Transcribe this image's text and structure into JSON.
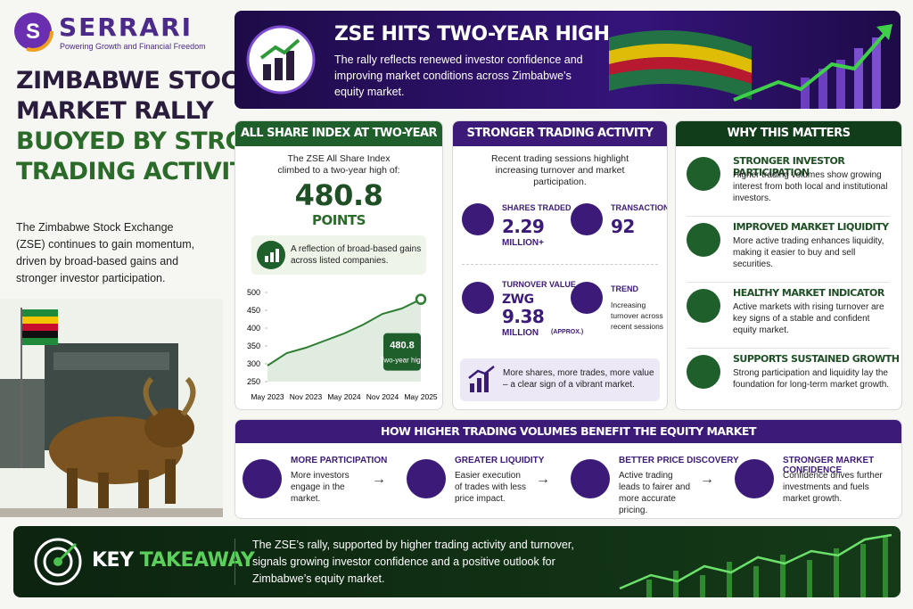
{
  "brand": {
    "name": "SERRARI",
    "tagline": "Powering Growth and Financial Freedom"
  },
  "headline": {
    "line1": "ZIMBABWE STOCK",
    "line2": "MARKET RALLY",
    "line3": "BUOYED BY STRONGER",
    "line4": "TRADING ACTIVITY"
  },
  "intro": "The Zimbabwe Stock Exchange (ZSE) continues to gain momentum, driven by broad-based gains and stronger investor participation.",
  "banner": {
    "title": "ZSE HITS TWO-YEAR HIGH",
    "text": "The rally reflects renewed investor confidence and improving market conditions across Zimbabwe’s equity market."
  },
  "index_panel": {
    "title": "ALL SHARE INDEX AT TWO-YEAR HIGH",
    "text": "The ZSE All Share Index climbed to a two-year high of:",
    "value": "480.8",
    "unit": "POINTS",
    "note": "A reflection of broad-based gains across listed companies.",
    "chart": {
      "type": "line",
      "categories": [
        "May 2023",
        null,
        "Nov 2023",
        null,
        "May 2024",
        null,
        "Nov 2024",
        null,
        "May 2025"
      ],
      "values": [
        295,
        330,
        345,
        365,
        385,
        410,
        440,
        455,
        480.8
      ],
      "color": "#2e7d32",
      "ylim": [
        250,
        500
      ],
      "yticks": [
        250,
        300,
        350,
        400,
        450,
        500
      ],
      "annotation": {
        "value_label": "480.8",
        "text": "Two-year high"
      }
    }
  },
  "trading_panel": {
    "title": "STRONGER TRADING ACTIVITY",
    "text": "Recent trading sessions highlight increasing turnover and market participation.",
    "shares": {
      "label": "SHARES TRADED",
      "value": "2.29",
      "unit": "MILLION+"
    },
    "transactions": {
      "label": "TRANSACTIONS",
      "value": "92"
    },
    "turnover": {
      "label": "TURNOVER VALUE",
      "prefix": "ZWG",
      "value": "9.38",
      "unit": "MILLION",
      "note": "(APPROX.)"
    },
    "trend": {
      "label": "TREND",
      "text": "Increasing turnover across recent sessions"
    },
    "footer": "More shares, more trades, more value – a clear sign of a vibrant market."
  },
  "why_panel": {
    "title": "WHY THIS MATTERS",
    "items": [
      {
        "title": "STRONGER INVESTOR PARTICIPATION",
        "text": "Higher trading volumes show growing interest from both local and institutional investors."
      },
      {
        "title": "IMPROVED MARKET LIQUIDITY",
        "text": "More active trading enhances liquidity, making it easier to buy and sell securities."
      },
      {
        "title": "HEALTHY MARKET INDICATOR",
        "text": "Active markets with rising turnover are key signs of a stable and confident equity market."
      },
      {
        "title": "SUPPORTS SUSTAINED GROWTH",
        "text": "Strong participation and liquidity lay the foundation for long-term market growth."
      }
    ]
  },
  "benefits": {
    "title": "HOW HIGHER TRADING VOLUMES BENEFIT THE EQUITY MARKET",
    "steps": [
      {
        "title": "MORE PARTICIPATION",
        "text": "More investors engage in the market."
      },
      {
        "title": "GREATER LIQUIDITY",
        "text": "Easier execution of trades with less price impact."
      },
      {
        "title": "BETTER PRICE DISCOVERY",
        "text": "Active trading leads to fairer and more accurate pricing."
      },
      {
        "title": "STRONGER MARKET CONFIDENCE",
        "text": "Confidence drives further investments and fuels market growth."
      }
    ]
  },
  "takeaway": {
    "label1": "KEY",
    "label2": "TAKEAWAY",
    "text": "The ZSE’s rally, supported by higher trading activity and turnover, signals growing investor confidence and a positive outlook for Zimbabwe’s equity market."
  }
}
